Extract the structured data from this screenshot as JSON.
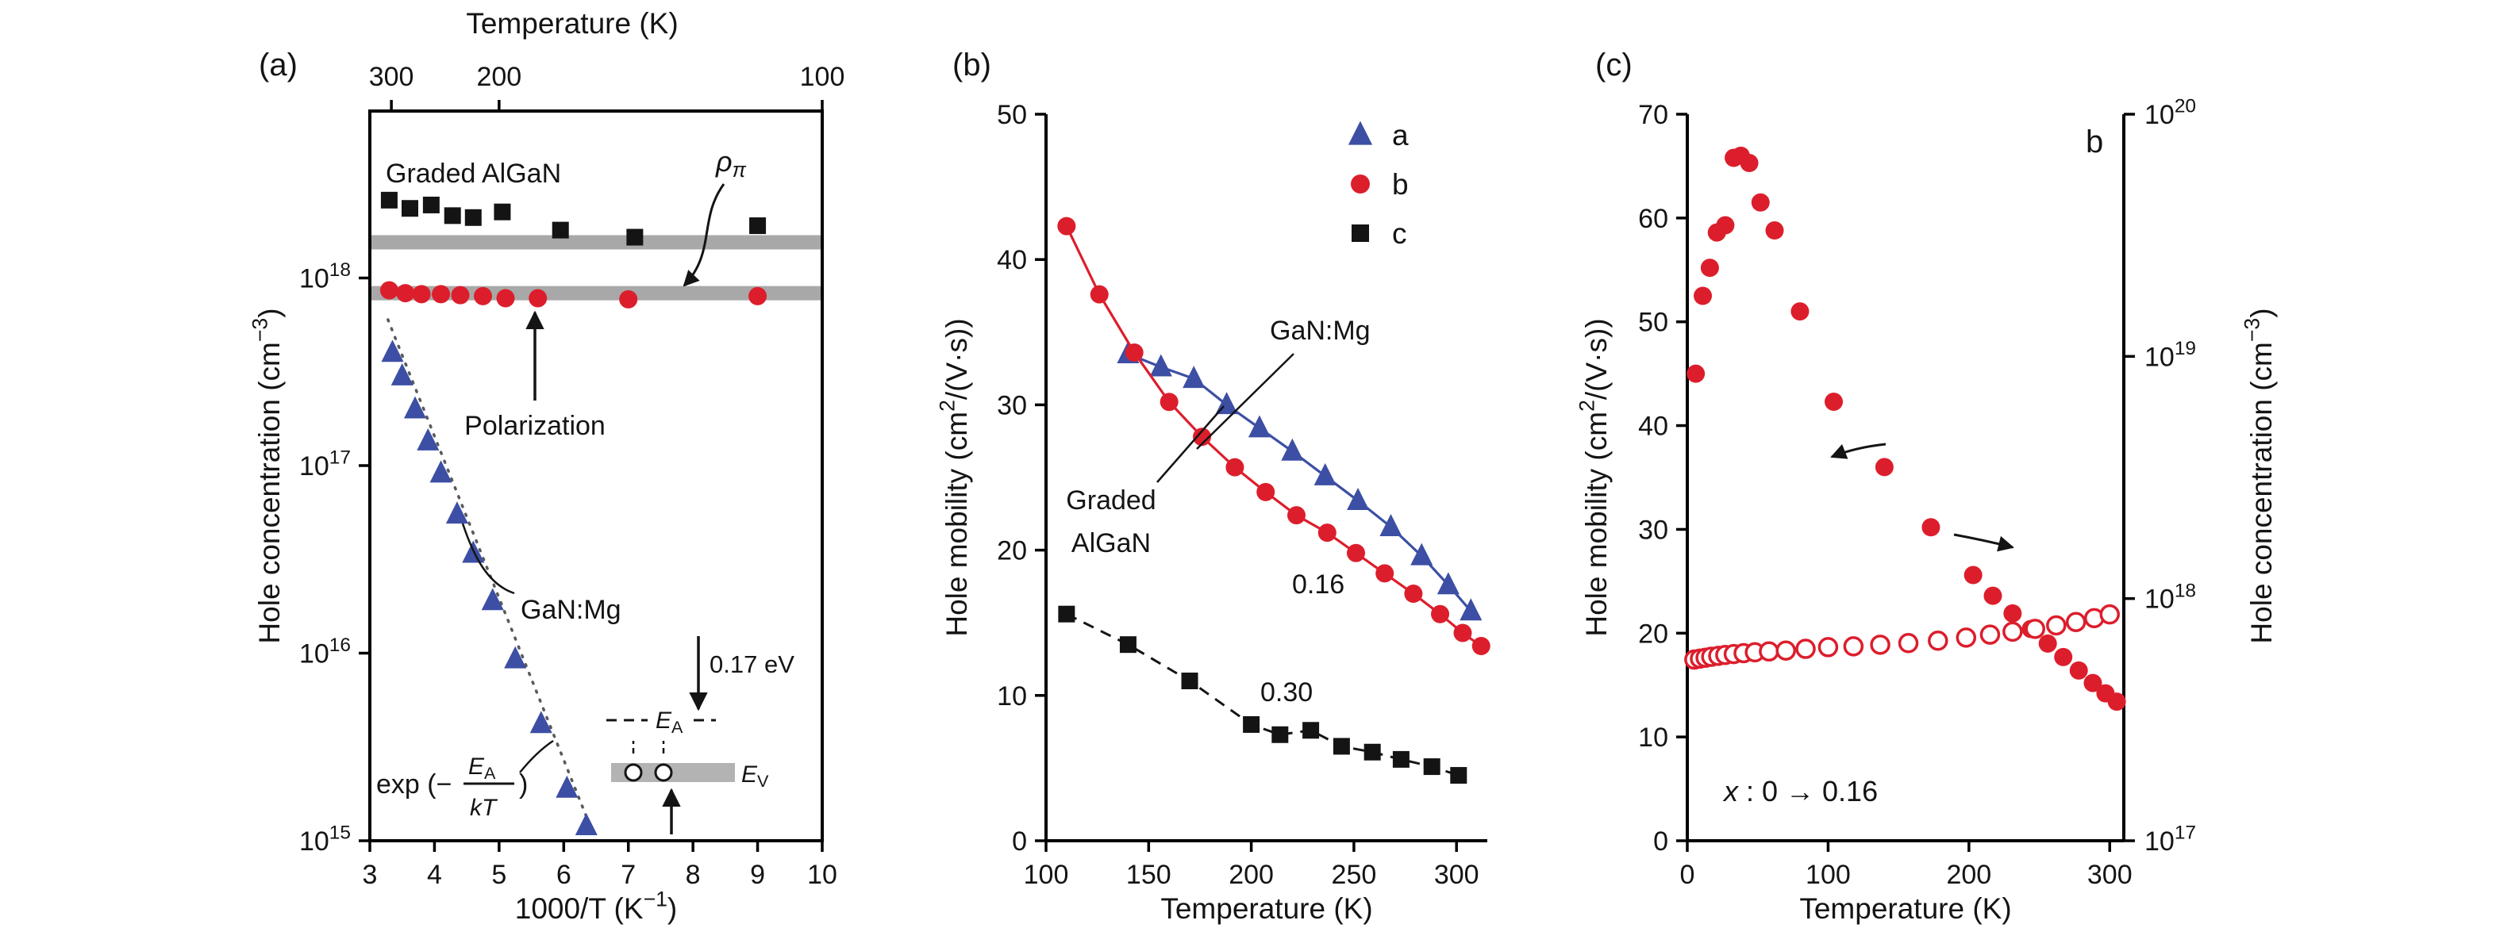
{
  "colors": {
    "blue": "#3c4fa4",
    "red": "#dc1e2c",
    "black": "#141414",
    "band_gray": "#a8a8a8"
  },
  "chart_data": [
    {
      "id": "a",
      "type": "scatter",
      "panel_label": "(a)",
      "top_axis": {
        "label": "Temperature (K)",
        "ticks": [
          {
            "label": "300",
            "value": 3.333
          },
          {
            "label": "200",
            "value": 5.0
          },
          {
            "label": "100",
            "value": 10.0
          }
        ]
      },
      "x_axis": {
        "label": "1000/T (K⁻¹)",
        "label_parts": [
          {
            "t": "1000/T (K"
          },
          {
            "t": "−1",
            "sup": true
          },
          {
            "t": ")"
          }
        ],
        "min": 3,
        "max": 10,
        "ticks": [
          3,
          4,
          5,
          6,
          7,
          8,
          9,
          10
        ]
      },
      "y_axis": {
        "label": "Hole concentration (cm⁻³)",
        "label_parts": [
          {
            "t": "Hole concentration (cm"
          },
          {
            "t": "−3",
            "sup": true
          },
          {
            "t": ")"
          }
        ],
        "scale": "log",
        "min_exp": 15,
        "max_exp": 18.89,
        "tick_exponents": [
          15,
          16,
          17,
          18
        ]
      },
      "polarization_bands": [
        {
          "value": 1.55e+18
        },
        {
          "value": 8.3e+17
        }
      ],
      "series": [
        {
          "name": "Graded AlGaN holes",
          "marker": "square",
          "color": "black",
          "x": [
            3.3,
            3.62,
            3.95,
            4.28,
            4.6,
            5.05,
            5.95,
            7.1,
            9.0
          ],
          "y": [
            2.6e+18,
            2.35e+18,
            2.45e+18,
            2.15e+18,
            2.1e+18,
            2.25e+18,
            1.8e+18,
            1.65e+18,
            1.9e+18
          ]
        },
        {
          "name": "Polarization-induced holes",
          "marker": "circle",
          "color": "red",
          "x": [
            3.3,
            3.55,
            3.8,
            4.1,
            4.4,
            4.75,
            5.1,
            5.6,
            7.0,
            9.0
          ],
          "y": [
            8.6e+17,
            8.3e+17,
            8.2e+17,
            8.2e+17,
            8.1e+17,
            8e+17,
            7.8e+17,
            7.8e+17,
            7.7e+17,
            8e+17
          ]
        },
        {
          "name": "GaN:Mg",
          "marker": "triangle",
          "color": "blue",
          "x": [
            3.35,
            3.5,
            3.7,
            3.9,
            4.1,
            4.35,
            4.6,
            4.9,
            5.25,
            5.65,
            6.05,
            6.35
          ],
          "y": [
            4e+17,
            3e+17,
            2e+17,
            1.35e+17,
            9.1e+16,
            5.5e+16,
            3.4e+16,
            1.9e+16,
            9300000000000000.0,
            4200000000000000.0,
            1900000000000000.0,
            1200000000000000.0
          ]
        }
      ],
      "fit_line": {
        "x1": 3.28,
        "y1": 6e+17,
        "x2": 6.5,
        "y2": 1000000000000000.0
      },
      "labels": {
        "graded_algan": "Graded AlGaN",
        "polarization": "Polarization",
        "gan_mg": "GaN:Mg",
        "rho_pi": [
          {
            "t": "ρ",
            "i": true
          },
          {
            "t": "π",
            "sub": true,
            "i": true
          }
        ],
        "exp_formula": {
          "prefix": "exp (−",
          "numerator": [
            {
              "t": "E",
              "i": true
            },
            {
              "t": "A",
              "sub": true
            }
          ],
          "denominator": [
            {
              "t": "kT",
              "i": true
            }
          ],
          "suffix": ")"
        },
        "inset": {
          "ea": [
            {
              "t": "E",
              "i": true
            },
            {
              "t": "A",
              "sub": true
            }
          ],
          "ev": [
            {
              "t": "E",
              "i": true
            },
            {
              "t": "V",
              "sub": true
            }
          ],
          "energy": "0.17 eV"
        }
      }
    },
    {
      "id": "b",
      "type": "scatter",
      "panel_label": "(b)",
      "x_axis": {
        "label": "Temperature (K)",
        "min": 100,
        "max": 315,
        "ticks": [
          100,
          150,
          200,
          250,
          300
        ]
      },
      "y_axis": {
        "label": "Hole mobility (cm²/(V·s))",
        "label_parts": [
          {
            "t": "Hole mobility (cm"
          },
          {
            "t": "2",
            "sup": true
          },
          {
            "t": "/(V·s))"
          }
        ],
        "min": 0,
        "max": 50,
        "ticks": [
          0,
          10,
          20,
          30,
          40,
          50
        ]
      },
      "legend": [
        {
          "label": "a",
          "marker": "triangle",
          "color": "blue"
        },
        {
          "label": "b",
          "marker": "circle",
          "color": "red"
        },
        {
          "label": "c",
          "marker": "square",
          "color": "black"
        }
      ],
      "series": [
        {
          "name": "a — GaN:Mg",
          "marker": "triangle",
          "color": "blue",
          "line": "solid",
          "x": [
            140,
            156,
            172,
            188,
            204,
            220,
            236,
            252,
            268,
            283,
            296,
            307
          ],
          "y": [
            33.5,
            32.6,
            31.8,
            30.0,
            28.4,
            26.8,
            25.1,
            23.4,
            21.6,
            19.6,
            17.6,
            15.8
          ]
        },
        {
          "name": "b — graded AlGaN x: 0→0.16",
          "marker": "circle",
          "color": "red",
          "line": "solid",
          "x": [
            110,
            126,
            143,
            160,
            176,
            192,
            207,
            222,
            237,
            251,
            265,
            279,
            292,
            303,
            312
          ],
          "y": [
            42.3,
            37.6,
            33.6,
            30.2,
            27.8,
            25.7,
            24.0,
            22.4,
            21.2,
            19.8,
            18.4,
            17.0,
            15.6,
            14.3,
            13.4
          ]
        },
        {
          "name": "c — graded AlGaN x: 0→0.30",
          "marker": "square",
          "color": "black",
          "line": "dashed",
          "x": [
            110,
            140,
            170,
            200,
            214,
            229,
            244,
            259,
            273,
            288,
            301
          ],
          "y": [
            15.6,
            13.5,
            11.0,
            8.0,
            7.3,
            7.6,
            6.5,
            6.1,
            5.6,
            5.1,
            4.5
          ]
        }
      ],
      "labels": {
        "gan_mg": "GaN:Mg",
        "graded_line1": "Graded",
        "graded_line2": "AlGaN",
        "x016": "0.16",
        "x030": "0.30"
      }
    },
    {
      "id": "c",
      "type": "scatter",
      "panel_label": "(c)",
      "corner_label": "b",
      "x_axis": {
        "label": "Temperature (K)",
        "min": 0,
        "max": 310,
        "ticks": [
          0,
          100,
          200,
          300
        ]
      },
      "y_axis_left": {
        "label": "Hole mobility  (cm²/(V·s))",
        "label_parts": [
          {
            "t": "Hole mobility  (cm"
          },
          {
            "t": "2",
            "sup": true
          },
          {
            "t": "/(V·s))"
          }
        ],
        "min": 0,
        "max": 70,
        "ticks": [
          0,
          10,
          20,
          30,
          40,
          50,
          60,
          70
        ]
      },
      "y_axis_right": {
        "label": "Hole concentration (cm⁻³)",
        "label_parts": [
          {
            "t": "Hole concentration (cm"
          },
          {
            "t": "−3",
            "sup": true
          },
          {
            "t": ")"
          }
        ],
        "scale": "log",
        "min_exp": 17,
        "max_exp": 20,
        "tick_exponents": [
          17,
          18,
          19,
          20
        ]
      },
      "series": [
        {
          "name": "Hole mobility",
          "axis": "left",
          "marker": "circle",
          "fill": "solid",
          "color": "red",
          "x": [
            6,
            11,
            16,
            21,
            27,
            33,
            38,
            44,
            52,
            62,
            80,
            104,
            140,
            173,
            203,
            217,
            231,
            244,
            256,
            267,
            278,
            288,
            297,
            305
          ],
          "y": [
            45.0,
            52.5,
            55.2,
            58.6,
            59.3,
            65.8,
            66.0,
            65.3,
            61.5,
            58.8,
            51.0,
            42.3,
            36.0,
            30.2,
            25.6,
            23.6,
            21.9,
            20.4,
            19.0,
            17.7,
            16.4,
            15.2,
            14.2,
            13.4
          ]
        },
        {
          "name": "Hole concentration",
          "axis": "right",
          "marker": "circle",
          "fill": "open",
          "color": "red",
          "x": [
            5,
            9,
            13,
            17,
            22,
            27,
            33,
            40,
            48,
            58,
            70,
            84,
            100,
            118,
            137,
            157,
            178,
            198,
            215,
            231,
            247,
            262,
            276,
            289,
            300
          ],
          "y": [
            5.6e+17,
            5.65e+17,
            5.7e+17,
            5.75e+17,
            5.8e+17,
            5.85e+17,
            5.9e+17,
            5.95e+17,
            6e+17,
            6.05e+17,
            6.1e+17,
            6.2e+17,
            6.3e+17,
            6.35e+17,
            6.45e+17,
            6.55e+17,
            6.7e+17,
            6.9e+17,
            7.1e+17,
            7.3e+17,
            7.5e+17,
            7.75e+17,
            8e+17,
            8.3e+17,
            8.6e+17
          ]
        }
      ],
      "labels": {
        "composition": [
          {
            "t": "x",
            "i": true
          },
          {
            "t": " : 0 → 0.16"
          }
        ]
      }
    }
  ]
}
